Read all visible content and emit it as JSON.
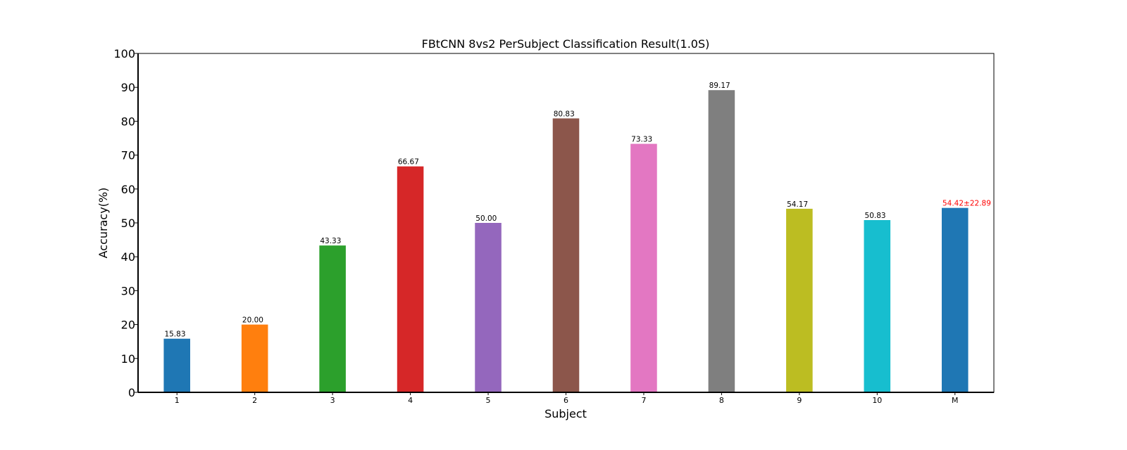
{
  "chart_data": {
    "type": "bar",
    "title": "FBtCNN 8vs2 PerSubject Classification Result(1.0S)",
    "xlabel": "Subject",
    "ylabel": "Accuracy(%)",
    "ylim": [
      0,
      100
    ],
    "yticks": [
      "0",
      "10",
      "20",
      "30",
      "40",
      "50",
      "60",
      "70",
      "80",
      "90",
      "100"
    ],
    "categories": [
      "1",
      "2",
      "3",
      "4",
      "5",
      "6",
      "7",
      "8",
      "9",
      "10",
      "M"
    ],
    "values": [
      15.83,
      20.0,
      43.33,
      66.67,
      50.0,
      80.83,
      73.33,
      89.17,
      54.17,
      50.83,
      54.42
    ],
    "data_labels": [
      "15.83",
      "20.00",
      "43.33",
      "66.67",
      "50.00",
      "80.83",
      "73.33",
      "89.17",
      "54.17",
      "50.83",
      "54.42±22.89"
    ],
    "colors": [
      "#1f77b4",
      "#ff7f0e",
      "#2ca02c",
      "#d62728",
      "#9467bd",
      "#8c564b",
      "#e377c2",
      "#7f7f7f",
      "#bcbd22",
      "#17becf",
      "#1f77b4"
    ],
    "label_colors": [
      "#000000",
      "#000000",
      "#000000",
      "#000000",
      "#000000",
      "#000000",
      "#000000",
      "#000000",
      "#000000",
      "#000000",
      "#ff0000"
    ],
    "grid": false,
    "legend": "none"
  }
}
